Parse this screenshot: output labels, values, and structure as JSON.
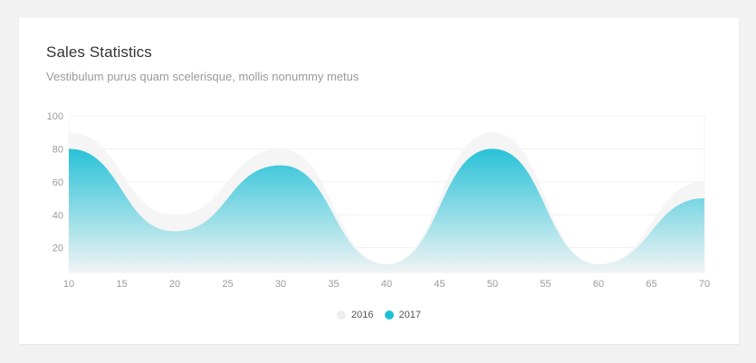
{
  "card": {
    "title": "Sales Statistics",
    "subtitle": "Vestibulum purus quam scelerisque, mollis nonummy metus"
  },
  "chart_data": {
    "type": "area",
    "title": "Sales Statistics",
    "subtitle": "Vestibulum purus quam scelerisque, mollis nonummy metus",
    "x": [
      10,
      20,
      30,
      40,
      50,
      60,
      70
    ],
    "x_ticks": [
      10,
      15,
      20,
      25,
      30,
      35,
      40,
      45,
      50,
      55,
      60,
      65,
      70
    ],
    "y_ticks": [
      20,
      40,
      60,
      80,
      100
    ],
    "xlim": [
      10,
      70
    ],
    "ylim": [
      5,
      100
    ],
    "grid": "horizontal",
    "legend_position": "bottom-center",
    "series": [
      {
        "name": "2016",
        "values": [
          90,
          40,
          80,
          10,
          90,
          10,
          60
        ],
        "color": "#eeeeee"
      },
      {
        "name": "2017",
        "values": [
          80,
          30,
          70,
          10,
          80,
          10,
          50
        ],
        "color": "#1ebfd6"
      }
    ]
  }
}
